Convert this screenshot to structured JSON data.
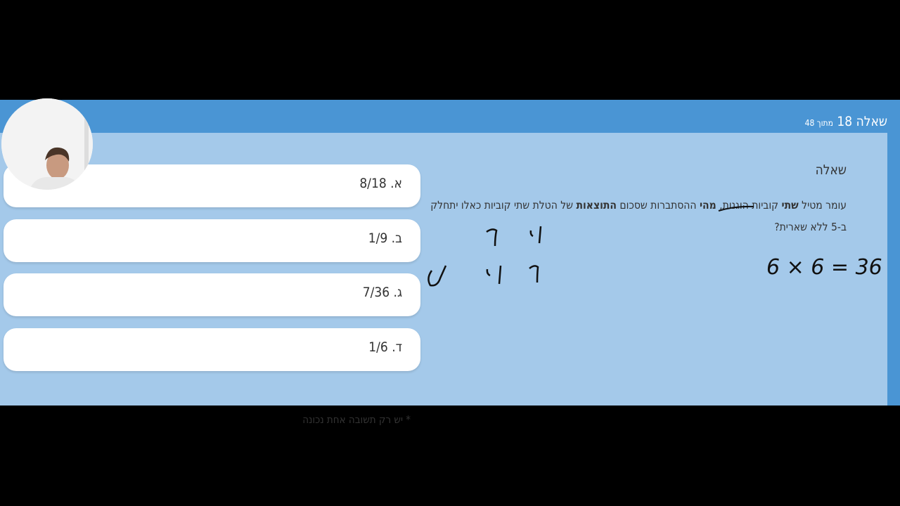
{
  "header": {
    "question_label": "שאלה 18",
    "of_total": "מתוך 48"
  },
  "question": {
    "heading": "שאלה",
    "segments": [
      {
        "text": "עומר מטיל ",
        "bold": false
      },
      {
        "text": "שתי",
        "bold": true
      },
      {
        "text": " קוביות הוגנות, ",
        "bold": false
      },
      {
        "text": "מהי",
        "bold": true
      },
      {
        "text": " ההסתברות שסכום ",
        "bold": false
      },
      {
        "text": "התוצאות",
        "bold": true
      },
      {
        "text": " של הטלת שתי קוביות כאלו יתחלק ב-5 ללא שארית?",
        "bold": false
      }
    ]
  },
  "answers": [
    {
      "label": "א. 8/18"
    },
    {
      "label": "ב. 1/9"
    },
    {
      "label": "ג. 7/36"
    },
    {
      "label": "ד. 1/6"
    }
  ],
  "note": "* יש רק תשובה אחת נכונה",
  "annotation": {
    "calc": "6 × 6 = 36"
  },
  "colors": {
    "header": "#4a95d4",
    "panel": "#a4c9ea",
    "answer_bg": "#ffffff"
  }
}
